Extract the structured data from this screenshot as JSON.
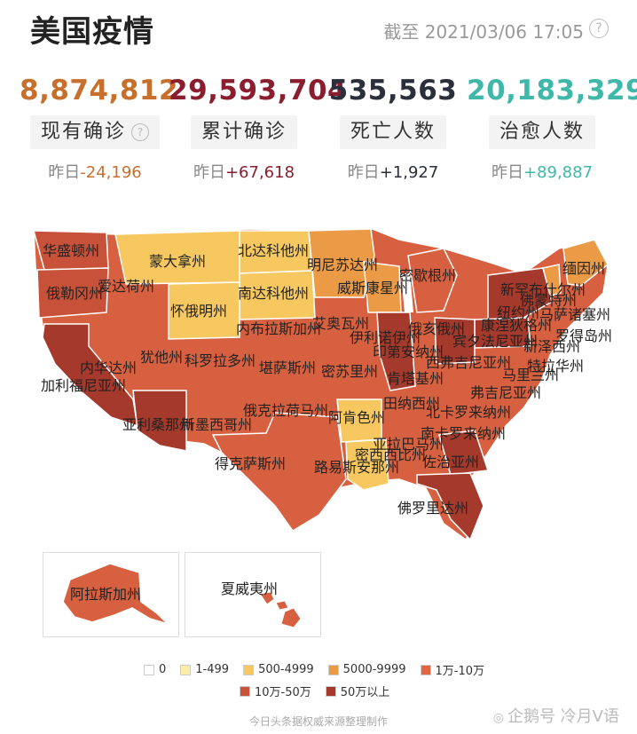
{
  "header": {
    "title": "美国疫情",
    "as_of": "截至 2021/03/06 17:05",
    "help_icon": "question-circle-icon"
  },
  "stats": [
    {
      "value": "8,874,812",
      "label": "现有确诊",
      "delta_prefix": "昨日",
      "delta": "-24,196",
      "color": "#c7702e",
      "has_help": true
    },
    {
      "value": "29,593,704",
      "label": "累计确诊",
      "delta_prefix": "昨日",
      "delta": "+67,618",
      "color": "#8b1e2e",
      "has_help": false
    },
    {
      "value": "535,563",
      "label": "死亡人数",
      "delta_prefix": "昨日",
      "delta": "+1,927",
      "color": "#2a2f3b",
      "has_help": false
    },
    {
      "value": "20,183,329",
      "label": "治愈人数",
      "delta_prefix": "昨日",
      "delta": "+89,887",
      "color": "#3fb8a9",
      "has_help": false
    }
  ],
  "map": {
    "states": [
      "华盛顿州",
      "俄勒冈州",
      "爱达荷州",
      "蒙大拿州",
      "北达科他州",
      "明尼苏达州",
      "密歇根州",
      "缅因州",
      "新罕布什尔州",
      "佛蒙特州",
      "纽约州",
      "马萨诸塞州",
      "罗得岛州",
      "康涅狄格州",
      "新泽西州",
      "宾夕法尼亚州",
      "俄亥俄州",
      "特拉华州",
      "马里兰州",
      "西弗吉尼亚州",
      "弗吉尼亚州",
      "印第安纳州",
      "伊利诺伊州",
      "威斯康星州",
      "南达科他州",
      "怀俄明州",
      "内布拉斯加州",
      "艾奥瓦州",
      "内华达州",
      "犹他州",
      "科罗拉多州",
      "堪萨斯州",
      "密苏里州",
      "肯塔基州",
      "田纳西州",
      "北卡罗来纳州",
      "南卡罗来纳州",
      "加利福尼亚州",
      "亚利桑那州",
      "新墨西哥州",
      "俄克拉荷马州",
      "阿肯色州",
      "得克萨斯州",
      "路易斯安那州",
      "密西西比州",
      "亚拉巴马州",
      "佐治亚州",
      "佛罗里达州"
    ],
    "insets": {
      "alaska": "阿拉斯加州",
      "hawaii": "夏威夷州"
    }
  },
  "legend": {
    "items": [
      {
        "label": "0",
        "color": "#ffffff"
      },
      {
        "label": "1-499",
        "color": "#fbeea8"
      },
      {
        "label": "500-4999",
        "color": "#f6c85f"
      },
      {
        "label": "5000-9999",
        "color": "#eb9a45"
      },
      {
        "label": "1万-10万",
        "color": "#e0673f"
      },
      {
        "label": "10万-50万",
        "color": "#c8513a"
      },
      {
        "label": "50万以上",
        "color": "#a5392b"
      }
    ]
  },
  "footer": {
    "source": "今日头条据权威来源整理制作",
    "watermark": "企鹅号 冷月V语"
  }
}
